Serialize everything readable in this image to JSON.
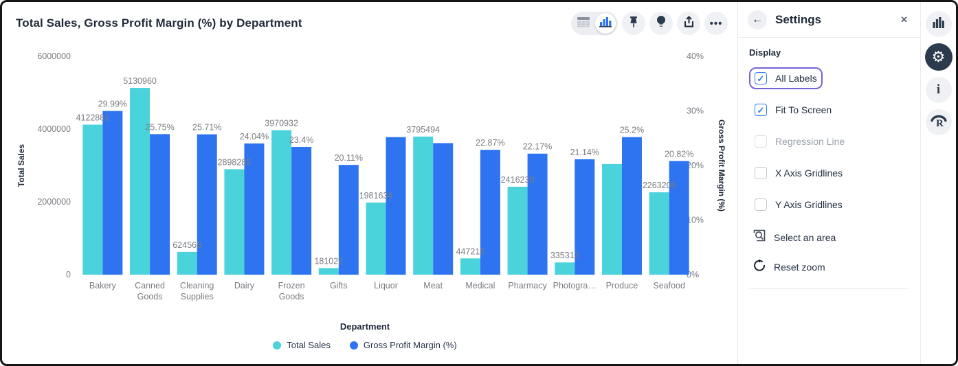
{
  "header": {
    "title": "Total Sales, Gross Profit Margin (%) by Department",
    "toolbar": {
      "view_toggle": {
        "options": [
          "table-view",
          "chart-view"
        ],
        "active": "chart-view"
      },
      "buttons": [
        "pin",
        "insights-bulb",
        "share-export",
        "more-options"
      ]
    }
  },
  "settings_panel": {
    "title": "Settings",
    "back_glyph": "←",
    "close_glyph": "✕",
    "section_label": "Display",
    "checkboxes": [
      {
        "label": "All Labels",
        "checked": true,
        "disabled": false,
        "focused": true
      },
      {
        "label": "Fit To Screen",
        "checked": true,
        "disabled": false,
        "focused": false
      },
      {
        "label": "Regression Line",
        "checked": false,
        "disabled": true,
        "focused": false
      },
      {
        "label": "X Axis Gridlines",
        "checked": false,
        "disabled": false,
        "focused": false
      },
      {
        "label": "Y Axis Gridlines",
        "checked": false,
        "disabled": false,
        "focused": false
      }
    ],
    "actions": [
      {
        "label": "Select an area",
        "icon": "select-area-icon"
      },
      {
        "label": "Reset zoom",
        "icon": "reset-zoom-icon"
      }
    ],
    "colors": {
      "focus_ring": "#7265d8",
      "checkbox_blue": "#2b7bf3"
    }
  },
  "icon_rail": {
    "items": [
      "chart-view",
      "settings-gear",
      "info",
      "r-script"
    ],
    "active": "settings-gear"
  },
  "chart_data": {
    "type": "bar",
    "title": "Total Sales, Gross Profit Margin (%) by Department",
    "xlabel": "Department",
    "categories": [
      "Bakery",
      "Canned Goods",
      "Cleaning Supplies",
      "Dairy",
      "Frozen Goods",
      "Gifts",
      "Liquor",
      "Meat",
      "Medical",
      "Pharmacy",
      "Photogra…",
      "Produce",
      "Seafood"
    ],
    "series": [
      {
        "name": "Total Sales",
        "axis": "left",
        "color": "#4bd3dc",
        "values": [
          4122881,
          5130960,
          624568,
          2898285,
          3970932,
          181022,
          1981634,
          3795494,
          447215,
          2416230,
          335312,
          3040000,
          2263205
        ],
        "labels": [
          "4122881",
          "5130960",
          "624568",
          "2898285",
          "3970932",
          "181022",
          "1981634",
          "3795494",
          "447215",
          "2416230",
          "335312",
          "",
          "2263205"
        ]
      },
      {
        "name": "Gross Profit Margin (%)",
        "axis": "right",
        "color": "#2e74f0",
        "values": [
          29.99,
          25.75,
          25.71,
          24.04,
          23.4,
          20.11,
          25.2,
          24.1,
          22.87,
          22.17,
          21.14,
          25.2,
          20.82
        ],
        "labels": [
          "29.99%",
          "25.75%",
          "25.71%",
          "24.04%",
          "23.4%",
          "20.11%",
          "",
          "",
          "22.87%",
          "22.17%",
          "21.14%",
          "25.2%",
          "20.82%"
        ]
      }
    ],
    "left_axis": {
      "title": "Total Sales",
      "ticks": [
        "6000000",
        "4000000",
        "2000000",
        "0"
      ],
      "max": 6000000,
      "min": 0
    },
    "right_axis": {
      "title": "Gross Profit Margin (%)",
      "ticks": [
        "40%",
        "30%",
        "20%",
        "10%",
        "0%"
      ],
      "max": 40,
      "min": 0
    },
    "legend": [
      "Total Sales",
      "Gross Profit Margin (%)"
    ],
    "legend_position": "bottom",
    "grid": false,
    "label_color": "#797c82"
  }
}
